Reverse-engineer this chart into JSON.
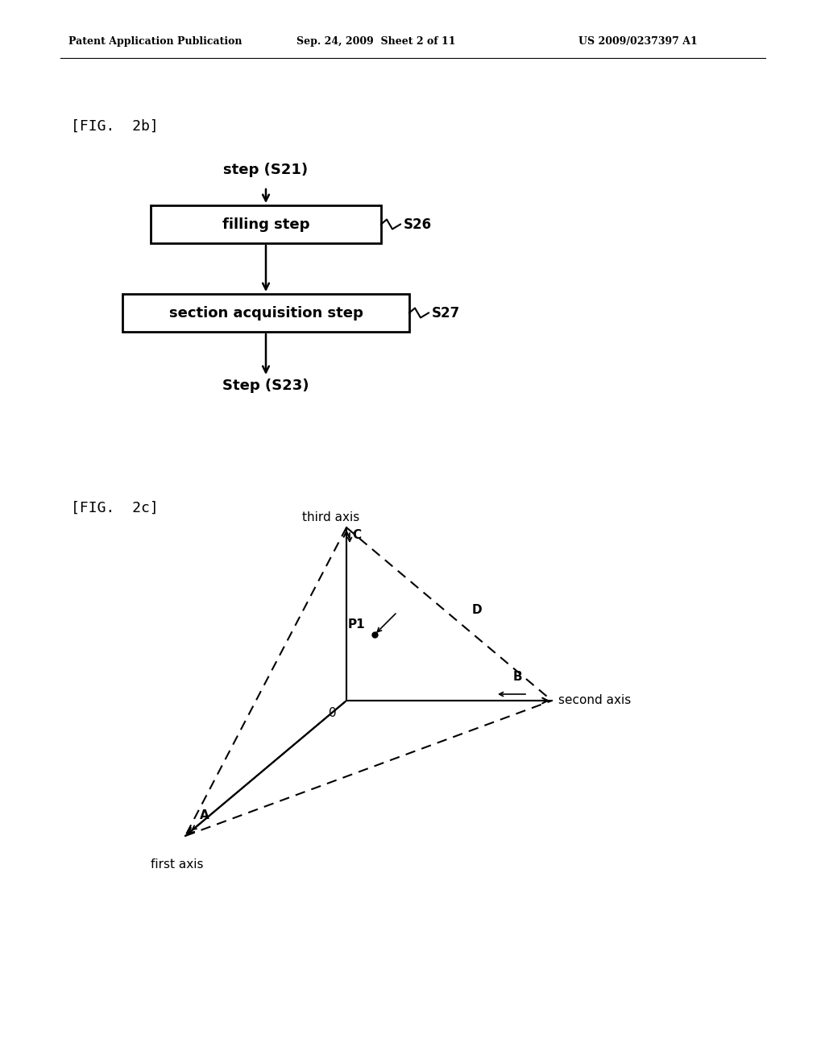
{
  "bg_color": "#ffffff",
  "header_left": "Patent Application Publication",
  "header_mid": "Sep. 24, 2009  Sheet 2 of 11",
  "header_right": "US 2009/0237397 A1",
  "fig2b_label": "[FIG.  2b]",
  "fig2c_label": "[FIG.  2c]",
  "box1_text": "filling step",
  "box2_text": "section acquisition step",
  "label_s21": "step (S21)",
  "label_s26": "S26",
  "label_s27": "S27",
  "label_s23": "Step (S23)",
  "axis_third": "third axis",
  "axis_second": "second axis",
  "axis_first": "first axis",
  "point_C": "C",
  "point_D": "D",
  "point_P1": "P1",
  "point_B": "B",
  "point_A": "A",
  "point_O": "0"
}
